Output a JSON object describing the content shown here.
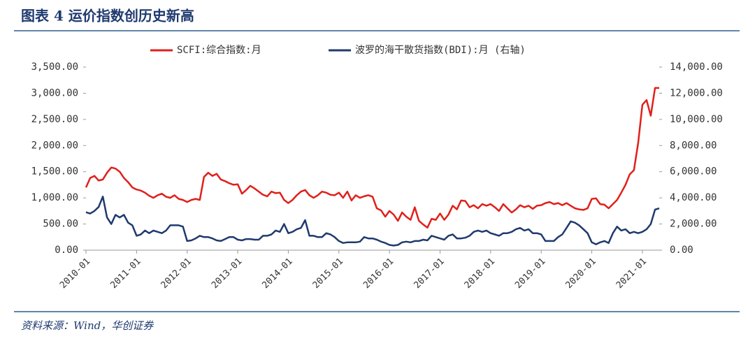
{
  "chart_data": {
    "type": "line",
    "title": "图表 4   运价指数创历史新高",
    "source": "资料来源：Wind，华创证券",
    "categories": [
      "2010-01",
      null,
      null,
      null,
      null,
      null,
      null,
      null,
      null,
      null,
      null,
      null,
      "2011-01",
      null,
      null,
      null,
      null,
      null,
      null,
      null,
      null,
      null,
      null,
      null,
      "2012-01",
      null,
      null,
      null,
      null,
      null,
      null,
      null,
      null,
      null,
      null,
      null,
      "2013-01",
      null,
      null,
      null,
      null,
      null,
      null,
      null,
      null,
      null,
      null,
      null,
      "2014-01",
      null,
      null,
      null,
      null,
      null,
      null,
      null,
      null,
      null,
      null,
      null,
      "2015-01",
      null,
      null,
      null,
      null,
      null,
      null,
      null,
      null,
      null,
      null,
      null,
      "2016-01",
      null,
      null,
      null,
      null,
      null,
      null,
      null,
      null,
      null,
      null,
      null,
      "2017-01",
      null,
      null,
      null,
      null,
      null,
      null,
      null,
      null,
      null,
      null,
      null,
      "2018-01",
      null,
      null,
      null,
      null,
      null,
      null,
      null,
      null,
      null,
      null,
      null,
      "2019-01",
      null,
      null,
      null,
      null,
      null,
      null,
      null,
      null,
      null,
      null,
      null,
      "2020-01",
      null,
      null,
      null,
      null,
      null,
      null,
      null,
      null,
      null,
      null,
      null,
      "2021-01",
      null,
      null,
      null,
      null
    ],
    "series": [
      {
        "name": "SCFI:综合指数:月",
        "color": "#e0201b",
        "values": [
          1200,
          1380,
          1420,
          1330,
          1350,
          1480,
          1580,
          1560,
          1500,
          1380,
          1300,
          1200,
          1160,
          1140,
          1100,
          1040,
          1000,
          1050,
          1080,
          1020,
          1000,
          1050,
          980,
          960,
          920,
          960,
          980,
          960,
          1400,
          1480,
          1420,
          1460,
          1350,
          1320,
          1280,
          1250,
          1260,
          1080,
          1150,
          1230,
          1180,
          1120,
          1060,
          1030,
          1120,
          1090,
          1100,
          960,
          900,
          960,
          1050,
          1120,
          1150,
          1050,
          1000,
          1050,
          1120,
          1100,
          1060,
          1050,
          1100,
          1000,
          1120,
          950,
          1050,
          1000,
          1030,
          1050,
          1020,
          800,
          760,
          640,
          750,
          680,
          560,
          720,
          640,
          580,
          820,
          560,
          490,
          430,
          600,
          580,
          700,
          580,
          680,
          850,
          780,
          950,
          940,
          820,
          860,
          800,
          880,
          850,
          880,
          820,
          750,
          880,
          800,
          720,
          780,
          860,
          820,
          850,
          790,
          850,
          860,
          900,
          920,
          880,
          900,
          860,
          900,
          850,
          800,
          780,
          770,
          800,
          980,
          990,
          880,
          870,
          800,
          880,
          960,
          1100,
          1250,
          1450,
          1530,
          2050,
          2780,
          2870,
          2570,
          3100,
          3100
        ]
      },
      {
        "name": "波罗的海干散货指数(BDI):月  (右轴)",
        "color": "#1f3a6e",
        "axis": "y2",
        "values": [
          2900,
          2800,
          3000,
          3300,
          4100,
          2500,
          2000,
          2700,
          2500,
          2700,
          2100,
          1900,
          1100,
          1200,
          1500,
          1300,
          1500,
          1400,
          1300,
          1500,
          1900,
          1900,
          1900,
          1800,
          700,
          750,
          900,
          1100,
          1000,
          1000,
          900,
          750,
          700,
          850,
          1000,
          1000,
          800,
          750,
          850,
          850,
          800,
          800,
          1100,
          1100,
          1200,
          1500,
          1400,
          2000,
          1300,
          1400,
          1600,
          1700,
          2300,
          1100,
          1100,
          1000,
          1000,
          1300,
          1200,
          1000,
          700,
          550,
          600,
          600,
          600,
          650,
          1000,
          900,
          900,
          800,
          650,
          550,
          400,
          350,
          400,
          600,
          650,
          600,
          700,
          700,
          800,
          750,
          1100,
          1000,
          900,
          800,
          1100,
          1200,
          900,
          900,
          950,
          1100,
          1400,
          1500,
          1400,
          1500,
          1300,
          1200,
          1100,
          1300,
          1300,
          1400,
          1600,
          1700,
          1500,
          1600,
          1300,
          1300,
          1200,
          700,
          700,
          700,
          1000,
          1200,
          1700,
          2200,
          2100,
          1900,
          1600,
          1300,
          600,
          450,
          600,
          700,
          550,
          1300,
          1800,
          1500,
          1600,
          1300,
          1400,
          1300,
          1400,
          1600,
          2000,
          3100,
          3200
        ]
      }
    ],
    "ylim": [
      0,
      3500
    ],
    "yticks": [
      {
        "value": 0,
        "label": "0.00"
      },
      {
        "value": 500,
        "label": "500.00"
      },
      {
        "value": 1000,
        "label": "1,000.00"
      },
      {
        "value": 1500,
        "label": "1,500.00"
      },
      {
        "value": 2000,
        "label": "2,000.00"
      },
      {
        "value": 2500,
        "label": "2,500.00"
      },
      {
        "value": 3000,
        "label": "3,000.00"
      },
      {
        "value": 3500,
        "label": "3,500.00"
      }
    ],
    "y2lim": [
      0,
      14000
    ],
    "y2ticks": [
      {
        "value": 0,
        "label": "0.00"
      },
      {
        "value": 2000,
        "label": "2,000.00"
      },
      {
        "value": 4000,
        "label": "4,000.00"
      },
      {
        "value": 6000,
        "label": "6,000.00"
      },
      {
        "value": 8000,
        "label": "8,000.00"
      },
      {
        "value": 10000,
        "label": "10,000.00"
      },
      {
        "value": 12000,
        "label": "12,000.00"
      },
      {
        "value": 14000,
        "label": "14,000.00"
      }
    ],
    "legend": "top"
  }
}
